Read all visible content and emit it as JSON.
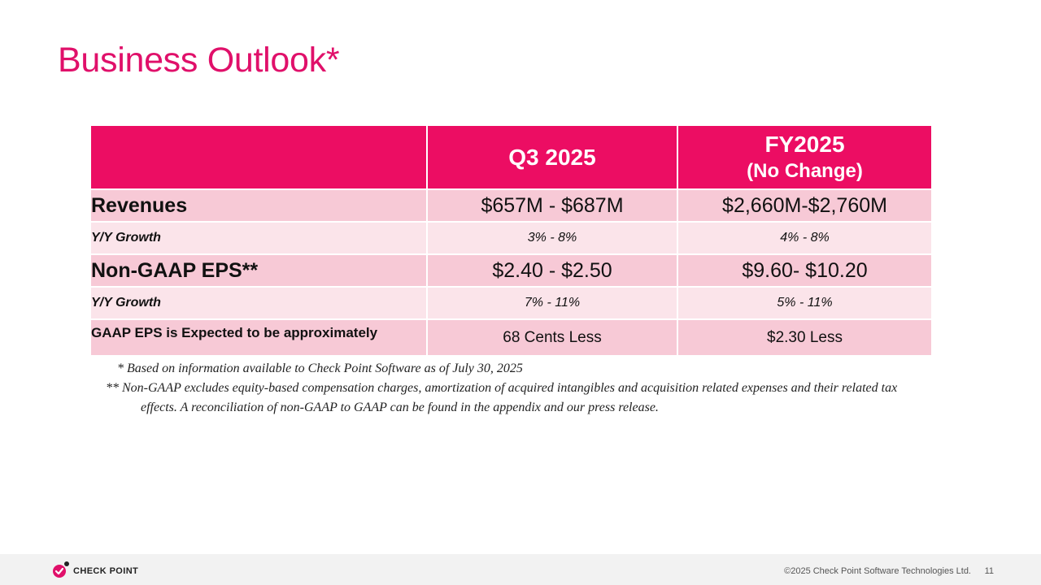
{
  "slide": {
    "title": "Business Outlook*",
    "page_number": "11"
  },
  "table": {
    "headers": {
      "q3": "Q3 2025",
      "fy": "FY2025",
      "fy_sub": "(No Change)"
    },
    "rows": [
      {
        "label": "Revenues",
        "q3": "$657M - $687M",
        "fy": "$2,660M-$2,760M"
      },
      {
        "label": "Y/Y Growth",
        "q3": "3% - 8%",
        "fy": "4% - 8%"
      },
      {
        "label": "Non-GAAP EPS**",
        "q3": "$2.40 - $2.50",
        "fy": "$9.60- $10.20"
      },
      {
        "label": "Y/Y Growth",
        "q3": "7% - 11%",
        "fy": "5% - 11%"
      },
      {
        "label": "GAAP EPS is Expected to be approximately",
        "q3": "68 Cents Less",
        "fy": "$2.30 Less"
      }
    ]
  },
  "notes": {
    "note1": "* Based on information available to Check Point Software as of July 30, 2025",
    "note2_mark": "**",
    "note2": "Non-GAAP excludes equity-based compensation charges, amortization of acquired intangibles and acquisition related expenses and their related tax effects. A reconciliation of non-GAAP to GAAP can be found in the appendix and our press release."
  },
  "footer": {
    "brand": "CHECK POINT",
    "copyright": "©2025 Check Point Software Technologies Ltd."
  },
  "colors": {
    "accent": "#e0106a",
    "header_bg": "#ec0d63",
    "row_dark": "#f7c9d6",
    "row_light": "#fbe4ea"
  },
  "icons": {
    "logo": "check-point-logo-icon"
  }
}
